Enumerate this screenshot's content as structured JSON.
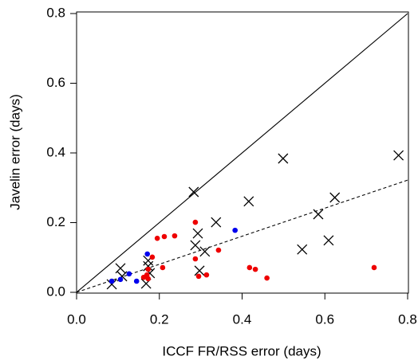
{
  "chart_data": {
    "type": "scatter",
    "x_label": "ICCF FR/RSS error (days)",
    "y_label": "Javelin error (days)",
    "xlim": [
      0,
      0.8
    ],
    "ylim": [
      0,
      0.8
    ],
    "xticks": [
      {
        "value": 0,
        "label": "0.0"
      },
      0.2,
      0.4,
      0.6,
      0.8
    ],
    "yticks": [
      {
        "value": 0,
        "label": "0.0"
      },
      0.2,
      0.4,
      0.6,
      0.8
    ],
    "series": [
      {
        "marker": "x",
        "color": "#000000",
        "x": [
          0.085,
          0.106,
          0.11,
          0.168,
          0.173,
          0.173,
          0.177,
          0.283,
          0.293,
          0.287,
          0.31,
          0.297,
          0.337,
          0.416,
          0.499,
          0.545,
          0.584,
          0.609,
          0.624,
          0.778
        ],
        "values": [
          0.023,
          0.069,
          0.046,
          0.025,
          0.091,
          0.075,
          0.055,
          0.288,
          0.169,
          0.135,
          0.117,
          0.062,
          0.201,
          0.261,
          0.384,
          0.123,
          0.224,
          0.149,
          0.272,
          0.393
        ]
      },
      {
        "marker": "dot",
        "color": "#ee0000",
        "x": [
          0.195,
          0.212,
          0.237,
          0.287,
          0.287,
          0.295,
          0.314,
          0.343,
          0.46,
          0.418,
          0.432,
          0.719,
          0.162,
          0.17,
          0.173,
          0.173,
          0.183,
          0.208
        ],
        "values": [
          0.155,
          0.16,
          0.162,
          0.201,
          0.096,
          0.046,
          0.05,
          0.121,
          0.041,
          0.071,
          0.066,
          0.071,
          0.043,
          0.05,
          0.066,
          0.039,
          0.101,
          0.071
        ]
      },
      {
        "marker": "dot",
        "color": "#0000ee",
        "x": [
          0.085,
          0.106,
          0.127,
          0.145,
          0.171,
          0.383
        ],
        "values": [
          0.032,
          0.037,
          0.053,
          0.032,
          0.11,
          0.178
        ]
      }
    ],
    "reference_lines": [
      {
        "x": [
          0,
          0.8
        ],
        "y": [
          0,
          0.8
        ],
        "dashed": false
      },
      {
        "x": [
          0,
          0.8
        ],
        "y": [
          0,
          0.322
        ],
        "dashed": true
      }
    ]
  }
}
